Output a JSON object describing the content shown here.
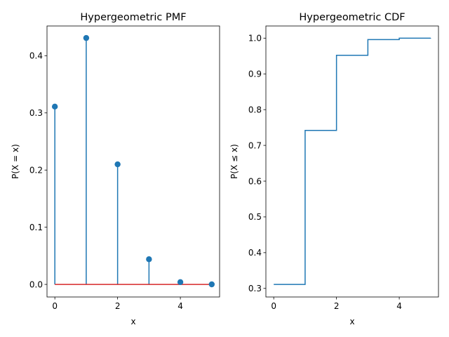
{
  "chart_data": [
    {
      "type": "stem",
      "title": "Hypergeometric PMF",
      "xlabel": "x",
      "ylabel": "P(X = x)",
      "x": [
        0,
        1,
        2,
        3,
        4,
        5
      ],
      "values": [
        0.311,
        0.431,
        0.21,
        0.044,
        0.004,
        0.0001
      ],
      "xlim": [
        -0.25,
        5.25
      ],
      "ylim": [
        -0.022,
        0.452
      ],
      "xticks": [
        0,
        2,
        4
      ],
      "yticks": [
        0.0,
        0.1,
        0.2,
        0.3,
        0.4
      ],
      "ytick_labels": [
        "0.0",
        "0.1",
        "0.2",
        "0.3",
        "0.4"
      ],
      "grid": false,
      "colors": {
        "stem": "#1f77b4",
        "baseline": "#d62728"
      }
    },
    {
      "type": "step",
      "title": "Hypergeometric CDF",
      "xlabel": "x",
      "ylabel": "P(X ≤ x)",
      "x": [
        0,
        1,
        2,
        3,
        4,
        5
      ],
      "values": [
        0.311,
        0.742,
        0.952,
        0.996,
        0.9999,
        1.0
      ],
      "step_where": "post",
      "xlim": [
        -0.25,
        5.25
      ],
      "ylim": [
        0.276,
        1.034
      ],
      "xticks": [
        0,
        2,
        4
      ],
      "yticks": [
        0.3,
        0.4,
        0.5,
        0.6,
        0.7,
        0.8,
        0.9,
        1.0
      ],
      "ytick_labels": [
        "0.3",
        "0.4",
        "0.5",
        "0.6",
        "0.7",
        "0.8",
        "0.9",
        "1.0"
      ],
      "grid": false,
      "colors": {
        "line": "#1f77b4"
      }
    }
  ]
}
